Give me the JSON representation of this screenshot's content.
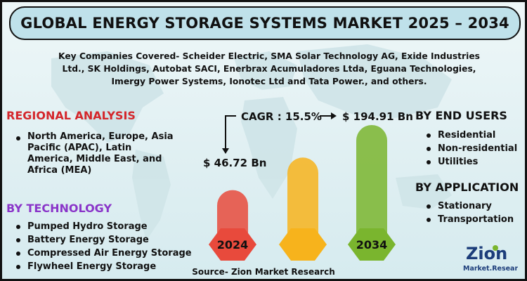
{
  "header": {
    "title": "GLOBAL ENERGY STORAGE SYSTEMS MARKET 2025 – 2034"
  },
  "companies": {
    "text": "Key Companies Covered- Scheider Electric, SMA Solar Technology AG, Exide Industries Ltd., SK Holdings, Autobat SACI, Enerbrax Acumuladores Ltda, Eguana Technologies, Imergy Power Systems, Ionotec Ltd and Tata Power., and others."
  },
  "regional": {
    "title": "REGIONAL ANALYSIS",
    "items": [
      "North America, Europe, Asia Pacific (APAC), Latin America, Middle East, and Africa (MEA)"
    ]
  },
  "technology": {
    "title": "BY TECHNOLOGY",
    "items": [
      "Pumped Hydro Storage",
      "Battery Energy Storage",
      "Compressed Air Energy Storage",
      "Flywheel Energy Storage"
    ]
  },
  "end_users": {
    "title": "BY END USERS",
    "items": [
      "Residential",
      "Non-residential",
      "Utilities"
    ]
  },
  "application": {
    "title": "BY APPLICATION",
    "items": [
      "Stationary",
      "Transportation"
    ]
  },
  "source": "Source- Zion Market Research",
  "logo": {
    "name": "Zion",
    "sub": "Market.Research"
  },
  "colors": {
    "bar_2024": "#e84a3c",
    "bar_mid": "#f7b31c",
    "bar_2034": "#7ab52e",
    "regional_title": "#d4262b",
    "tech_title": "#8a35c9",
    "title_bar": "#bfe1ea"
  },
  "chart_data": {
    "type": "bar",
    "title": "Global Energy Storage Systems Market",
    "categories": [
      "2024",
      "",
      "2034"
    ],
    "values": [
      46.72,
      null,
      194.91
    ],
    "value_labels": [
      "$ 46.72 Bn",
      "",
      "$ 194.91 Bn"
    ],
    "unit": "USD Billion",
    "cagr_label": "CAGR : 15.5%",
    "annotation": "CAGR arrow from 2024 value to 2034 value"
  }
}
